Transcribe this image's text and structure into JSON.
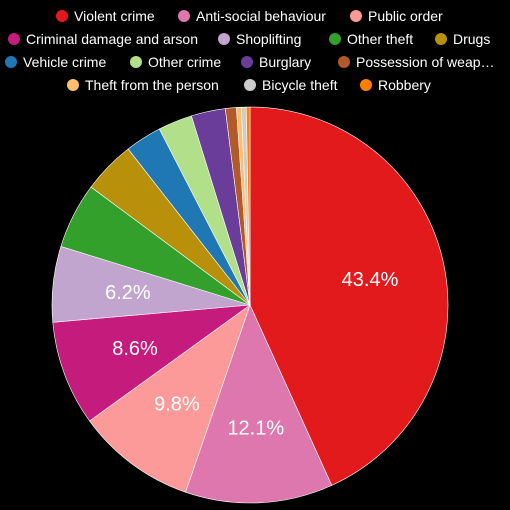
{
  "chart_data": {
    "type": "pie",
    "title": "",
    "series": [
      {
        "name": "Violent crime",
        "value": 43.4,
        "color": "#e31a1c",
        "label": "43.4%"
      },
      {
        "name": "Anti-social behaviour",
        "value": 12.1,
        "color": "#de77ae",
        "label": "12.1%"
      },
      {
        "name": "Public order",
        "value": 9.8,
        "color": "#fb9a99",
        "label": "9.8%"
      },
      {
        "name": "Criminal damage and arson",
        "value": 8.6,
        "color": "#c51b7d",
        "label": "8.6%"
      },
      {
        "name": "Shoplifting",
        "value": 6.2,
        "color": "#c2a5cf",
        "label": "6.2%"
      },
      {
        "name": "Other theft",
        "value": 5.4,
        "color": "#33a02c",
        "label": ""
      },
      {
        "name": "Drugs",
        "value": 4.3,
        "color": "#b8900a",
        "label": ""
      },
      {
        "name": "Vehicle crime",
        "value": 3.0,
        "color": "#1f78b4",
        "label": ""
      },
      {
        "name": "Other crime",
        "value": 2.8,
        "color": "#b2df8a",
        "label": ""
      },
      {
        "name": "Burglary",
        "value": 2.8,
        "color": "#6a3d9a",
        "label": ""
      },
      {
        "name": "Possession of weap…",
        "value": 0.9,
        "color": "#b15928",
        "label": ""
      },
      {
        "name": "Theft from the person",
        "value": 0.4,
        "color": "#fdbf6f",
        "label": ""
      },
      {
        "name": "Bicycle theft",
        "value": 0.4,
        "color": "#cccccc",
        "label": ""
      },
      {
        "name": "Robbery",
        "value": 0.3,
        "color": "#ff7f00",
        "label": ""
      }
    ],
    "legend_position": "top",
    "start_angle": "top, clockwise"
  }
}
